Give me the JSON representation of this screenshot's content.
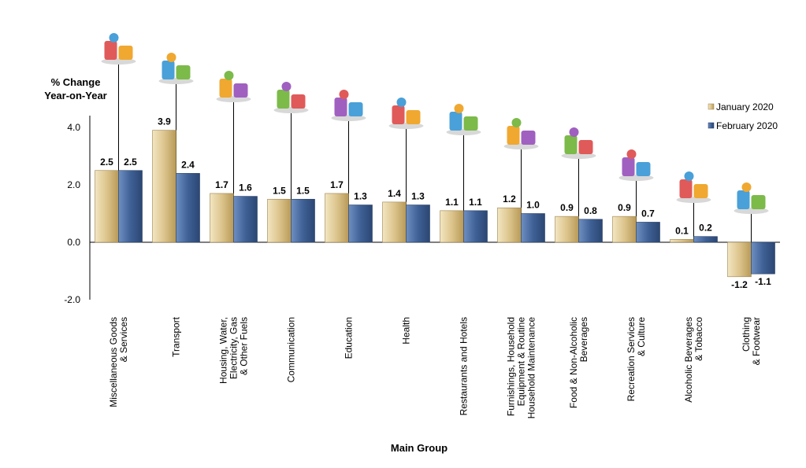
{
  "chart_data": {
    "type": "bar",
    "ylabel": [
      "% Change",
      "Year-on-Year"
    ],
    "xlabel": "Main Group",
    "ylim": [
      -2.0,
      4.0
    ],
    "yticks": [
      "4.0",
      "2.0",
      "0.0",
      "-2.0"
    ],
    "ytick_values": [
      4.0,
      2.0,
      0.0,
      -2.0
    ],
    "legend_position": "top-right",
    "categories": [
      [
        "Miscellaneous Goods",
        "& Services"
      ],
      [
        "Transport"
      ],
      [
        "Housing, Water,",
        "Electricity, Gas",
        "& Other Fuels"
      ],
      [
        "Communication"
      ],
      [
        "Education"
      ],
      [
        "Health"
      ],
      [
        "Restaurants  and Hotels"
      ],
      [
        "Furnishings, Household",
        "Equipment  & Routine",
        "Household  Maintenance"
      ],
      [
        "Food & Non-Alcoholic",
        "Beverages"
      ],
      [
        "Recreation Services",
        "& Culture"
      ],
      [
        "Alcoholic Beverages",
        "& Tobacco"
      ],
      [
        "Clothing",
        "& Footwear"
      ]
    ],
    "series": [
      {
        "name": "January 2020",
        "color": "#d9c28a",
        "values": [
          2.5,
          3.9,
          1.7,
          1.5,
          1.7,
          1.4,
          1.1,
          1.2,
          0.9,
          0.9,
          0.1,
          -1.2
        ],
        "labels": [
          "2.5",
          "3.9",
          "1.7",
          "1.5",
          "1.7",
          "1.4",
          "1.1",
          "1.2",
          "0.9",
          "0.9",
          "0.1",
          "-1.2"
        ]
      },
      {
        "name": "February 2020",
        "color": "#3f6196",
        "values": [
          2.5,
          2.4,
          1.6,
          1.5,
          1.3,
          1.3,
          1.1,
          1.0,
          0.8,
          0.7,
          0.2,
          -1.1
        ],
        "labels": [
          "2.5",
          "2.4",
          "1.6",
          "1.5",
          "1.3",
          "1.3",
          "1.1",
          "1.0",
          "0.8",
          "0.7",
          "0.2",
          "-1.1"
        ]
      }
    ],
    "icons": [
      "shopping-icon",
      "transport-icon",
      "housing-utilities-icon",
      "communication-icon",
      "education-books-icon",
      "health-hospital-icon",
      "restaurant-building-icon",
      "furnishings-appliances-icon",
      "food-basket-icon",
      "recreation-icon",
      "alcohol-tobacco-icon",
      "clothing-icon"
    ]
  }
}
